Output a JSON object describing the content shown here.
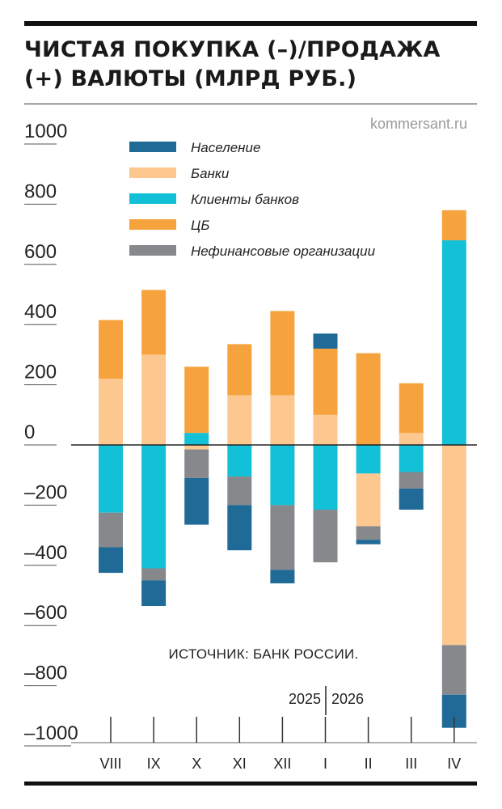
{
  "title": "ЧИСТАЯ ПОКУПКА (–)/ПРОДАЖА (+) ВАЛЮТЫ (МЛРД РУБ.)",
  "site": "kommersant.ru",
  "source": "ИСТОЧНИК: БАНК РОССИИ.",
  "years": [
    "2025",
    "2026"
  ],
  "chart_data": {
    "type": "bar",
    "stacked": true,
    "title": "ЧИСТАЯ ПОКУПКА (–)/ПРОДАЖА (+) ВАЛЮТЫ (МЛРД РУБ.)",
    "xlabel": "",
    "ylabel": "",
    "ylim": [
      -1000,
      1000
    ],
    "yticks": [
      1000,
      800,
      600,
      400,
      200,
      0,
      -200,
      -400,
      -600,
      -800,
      -1000
    ],
    "ytick_labels": [
      "1000",
      "800",
      "600",
      "400",
      "200",
      "0",
      "–200",
      "–400",
      "–600",
      "–800",
      "–1000"
    ],
    "categories": [
      "VIII",
      "IX",
      "X",
      "XI",
      "XII",
      "I",
      "II",
      "III",
      "IV"
    ],
    "legend_position": "top-left",
    "grid": false,
    "series": [
      {
        "name": "Население",
        "color": "#1f6a96",
        "values": [
          -85,
          -85,
          -155,
          -150,
          -45,
          50,
          -15,
          -70,
          -110
        ]
      },
      {
        "name": "Банки",
        "color": "#fcc890",
        "values": [
          220,
          300,
          -15,
          165,
          165,
          100,
          -175,
          40,
          -665
        ]
      },
      {
        "name": "Клиенты банков",
        "color": "#12c1d8",
        "values": [
          -225,
          -410,
          40,
          -105,
          -200,
          -215,
          -95,
          -90,
          680
        ]
      },
      {
        "name": "ЦБ",
        "color": "#f6a33e",
        "values": [
          195,
          215,
          220,
          170,
          280,
          220,
          305,
          165,
          100
        ]
      },
      {
        "name": "Нефинансовые организации",
        "color": "#86888c",
        "values": [
          -115,
          -40,
          -95,
          -95,
          -215,
          -175,
          -45,
          -55,
          -165
        ]
      }
    ],
    "negative_stack_order": [
      "Клиенты банков",
      "Банки",
      "Нефинансовые организации",
      "Население"
    ],
    "positive_stack_order": [
      "Банки",
      "Клиенты банков",
      "ЦБ",
      "Население"
    ]
  }
}
